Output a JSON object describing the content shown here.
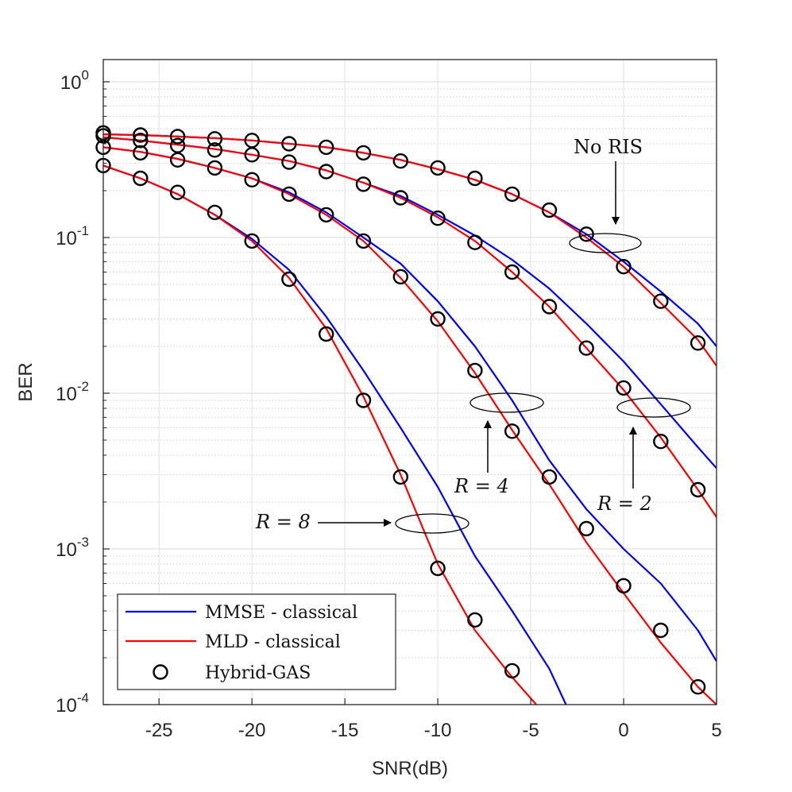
{
  "chart_data": {
    "type": "line",
    "xlabel": "SNR(dB)",
    "ylabel": "BER",
    "xlim": [
      -28,
      5
    ],
    "ylim": [
      0.0001,
      1
    ],
    "yscale": "log",
    "grid": true,
    "minor_grid": true,
    "x_ticks": [
      -25,
      -20,
      -15,
      -10,
      -5,
      0,
      5
    ],
    "x_tick_labels": [
      "-25",
      "-20",
      "-15",
      "-10",
      "-5",
      "0",
      "5"
    ],
    "y_tick_labels": [
      {
        "base": "10",
        "exp": "0"
      },
      {
        "base": "10",
        "exp": "-1"
      },
      {
        "base": "10",
        "exp": "-2"
      },
      {
        "base": "10",
        "exp": "-3"
      },
      {
        "base": "10",
        "exp": "-4"
      }
    ],
    "legend": {
      "position": "bottom-left",
      "entries": [
        {
          "label": "MMSE - classical",
          "color": "#0000ff",
          "marker": "line"
        },
        {
          "label": "MLD - classical",
          "color": "#ff0000",
          "marker": "line"
        },
        {
          "label": "Hybrid-GAS",
          "color": "#000000",
          "marker": "circle"
        }
      ]
    },
    "colors": {
      "mmse": "#0000ff",
      "mld": "#ff0000",
      "hybrid": "#000000"
    },
    "groups": [
      {
        "label": "No RIS",
        "mmse": {
          "x": [
            -28,
            -26,
            -24,
            -22,
            -20,
            -18,
            -16,
            -14,
            -12,
            -10,
            -8,
            -6,
            -4,
            -2,
            0,
            2,
            4,
            5
          ],
          "y": [
            0.46,
            0.455,
            0.445,
            0.435,
            0.42,
            0.4,
            0.38,
            0.35,
            0.315,
            0.275,
            0.235,
            0.19,
            0.145,
            0.105,
            0.07,
            0.045,
            0.028,
            0.02
          ]
        },
        "mld": {
          "x": [
            -28,
            -26,
            -24,
            -22,
            -20,
            -18,
            -16,
            -14,
            -12,
            -10,
            -8,
            -6,
            -4,
            -2,
            0,
            2,
            4,
            5
          ],
          "y": [
            0.46,
            0.455,
            0.445,
            0.435,
            0.42,
            0.4,
            0.38,
            0.35,
            0.315,
            0.275,
            0.235,
            0.19,
            0.145,
            0.1,
            0.065,
            0.038,
            0.022,
            0.015
          ]
        },
        "hybrid": {
          "x": [
            -28,
            -26,
            -24,
            -22,
            -20,
            -18,
            -16,
            -14,
            -12,
            -10,
            -8,
            -6,
            -4,
            -2,
            0,
            2,
            4
          ],
          "y": [
            0.47,
            0.455,
            0.445,
            0.43,
            0.42,
            0.4,
            0.38,
            0.35,
            0.31,
            0.28,
            0.24,
            0.19,
            0.15,
            0.105,
            0.065,
            0.039,
            0.021
          ]
        }
      },
      {
        "label": "R = 2",
        "mmse": {
          "x": [
            -28,
            -26,
            -24,
            -22,
            -20,
            -18,
            -16,
            -14,
            -12,
            -10,
            -8,
            -6,
            -4,
            -2,
            0,
            2,
            4,
            5
          ],
          "y": [
            0.44,
            0.42,
            0.395,
            0.37,
            0.34,
            0.31,
            0.27,
            0.225,
            0.185,
            0.14,
            0.103,
            0.072,
            0.047,
            0.028,
            0.016,
            0.0085,
            0.0045,
            0.0033
          ]
        },
        "mld": {
          "x": [
            -28,
            -26,
            -24,
            -22,
            -20,
            -18,
            -16,
            -14,
            -12,
            -10,
            -8,
            -6,
            -4,
            -2,
            0,
            2,
            4,
            5
          ],
          "y": [
            0.44,
            0.42,
            0.395,
            0.37,
            0.34,
            0.31,
            0.27,
            0.225,
            0.18,
            0.135,
            0.095,
            0.06,
            0.036,
            0.0195,
            0.0105,
            0.0052,
            0.0024,
            0.0016
          ]
        },
        "hybrid": {
          "x": [
            -28,
            -26,
            -24,
            -22,
            -20,
            -18,
            -16,
            -14,
            -12,
            -10,
            -8,
            -6,
            -4,
            -2,
            0,
            2,
            4
          ],
          "y": [
            0.45,
            0.42,
            0.39,
            0.365,
            0.34,
            0.305,
            0.265,
            0.22,
            0.18,
            0.133,
            0.093,
            0.06,
            0.036,
            0.0195,
            0.0108,
            0.0049,
            0.0024
          ]
        }
      },
      {
        "label": "R = 4",
        "mmse": {
          "x": [
            -28,
            -26,
            -24,
            -22,
            -20,
            -18,
            -16,
            -14,
            -12,
            -10,
            -8,
            -6,
            -4,
            -2,
            0,
            2,
            4,
            5
          ],
          "y": [
            0.38,
            0.355,
            0.32,
            0.28,
            0.24,
            0.195,
            0.145,
            0.1,
            0.068,
            0.039,
            0.02,
            0.009,
            0.0037,
            0.0018,
            0.001,
            0.0006,
            0.0003,
            0.00019
          ]
        },
        "mld": {
          "x": [
            -28,
            -26,
            -24,
            -22,
            -20,
            -18,
            -16,
            -14,
            -12,
            -10,
            -8,
            -6,
            -4,
            -2,
            0,
            2,
            4,
            5
          ],
          "y": [
            0.38,
            0.355,
            0.32,
            0.28,
            0.24,
            0.19,
            0.14,
            0.095,
            0.055,
            0.029,
            0.0135,
            0.0058,
            0.0026,
            0.0011,
            0.00052,
            0.00025,
            0.00013,
            0.0001
          ]
        },
        "hybrid": {
          "x": [
            -28,
            -26,
            -24,
            -22,
            -20,
            -18,
            -16,
            -14,
            -12,
            -10,
            -8,
            -6,
            -4,
            -2,
            0,
            2,
            4
          ],
          "y": [
            0.38,
            0.35,
            0.315,
            0.28,
            0.235,
            0.19,
            0.14,
            0.095,
            0.056,
            0.03,
            0.014,
            0.0057,
            0.0029,
            0.00135,
            0.00058,
            0.0003,
            0.00013
          ]
        }
      },
      {
        "label": "R = 8",
        "mmse": {
          "x": [
            -28,
            -26,
            -24,
            -22,
            -20,
            -18,
            -16,
            -14,
            -12,
            -10,
            -8,
            -6,
            -4,
            -3.1
          ],
          "y": [
            0.29,
            0.24,
            0.19,
            0.14,
            0.098,
            0.062,
            0.031,
            0.014,
            0.006,
            0.0025,
            0.0009,
            0.0004,
            0.00017,
            0.0001
          ]
        },
        "mld": {
          "x": [
            -28,
            -26,
            -24,
            -22,
            -20,
            -18,
            -16,
            -14,
            -12,
            -10,
            -8,
            -6,
            -4.7
          ],
          "y": [
            0.29,
            0.24,
            0.19,
            0.14,
            0.095,
            0.055,
            0.026,
            0.0095,
            0.003,
            0.0008,
            0.0003,
            0.00015,
            0.0001
          ]
        },
        "hybrid": {
          "x": [
            -28,
            -26,
            -24,
            -22,
            -20,
            -18,
            -16,
            -14,
            -12,
            -10,
            -8,
            -6
          ],
          "y": [
            0.29,
            0.24,
            0.195,
            0.145,
            0.095,
            0.054,
            0.024,
            0.009,
            0.0029,
            0.00075,
            0.00035,
            0.000165
          ]
        }
      }
    ],
    "annotations": [
      {
        "text": "No RIS",
        "arrow": "down",
        "ellipse_center": [
          -0.5,
          0.095
        ]
      },
      {
        "text": "R = 2",
        "arrow": "up",
        "ellipse_center": [
          1.8,
          0.0082
        ]
      },
      {
        "text": "R = 4",
        "arrow": "up",
        "ellipse_center": [
          -6.8,
          0.009
        ]
      },
      {
        "text": "R = 8",
        "arrow": "right",
        "ellipse_center": [
          -10.5,
          0.0015
        ]
      }
    ]
  }
}
